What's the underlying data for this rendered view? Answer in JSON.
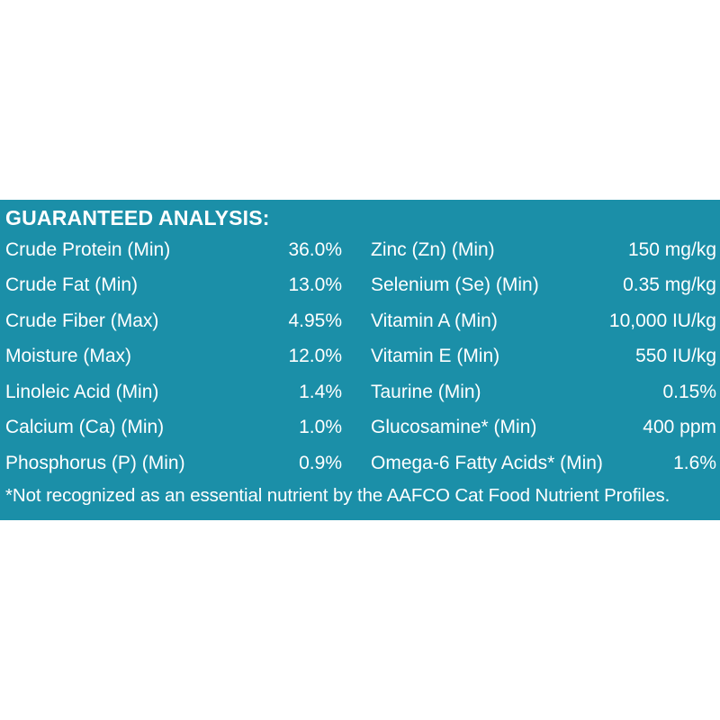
{
  "heading": "GUARANTEED ANALYSIS:",
  "rows": [
    {
      "left_name": "Crude Protein (Min)",
      "left_value": "36.0%",
      "right_name": "Zinc (Zn) (Min)",
      "right_value": "150 mg/kg"
    },
    {
      "left_name": "Crude Fat (Min)",
      "left_value": "13.0%",
      "right_name": "Selenium (Se) (Min)",
      "right_value": "0.35 mg/kg"
    },
    {
      "left_name": "Crude Fiber (Max)",
      "left_value": "4.95%",
      "right_name": "Vitamin A (Min)",
      "right_value": "10,000 IU/kg"
    },
    {
      "left_name": "Moisture (Max)",
      "left_value": "12.0%",
      "right_name": "Vitamin E (Min)",
      "right_value": "550 IU/kg"
    },
    {
      "left_name": "Linoleic Acid (Min)",
      "left_value": "1.4%",
      "right_name": "Taurine (Min)",
      "right_value": "0.15%"
    },
    {
      "left_name": "Calcium (Ca) (Min)",
      "left_value": "1.0%",
      "right_name": "Glucosamine* (Min)",
      "right_value": "400 ppm"
    },
    {
      "left_name": "Phosphorus (P) (Min)",
      "left_value": "0.9%",
      "right_name": "Omega-6 Fatty Acids* (Min)",
      "right_value": "1.6%"
    }
  ],
  "footnote": "*Not recognized as an essential nutrient by the AAFCO Cat Food Nutrient Profiles.",
  "colors": {
    "panel_background": "#1b8fa8",
    "text": "#ffffff",
    "page_background": "#ffffff"
  }
}
